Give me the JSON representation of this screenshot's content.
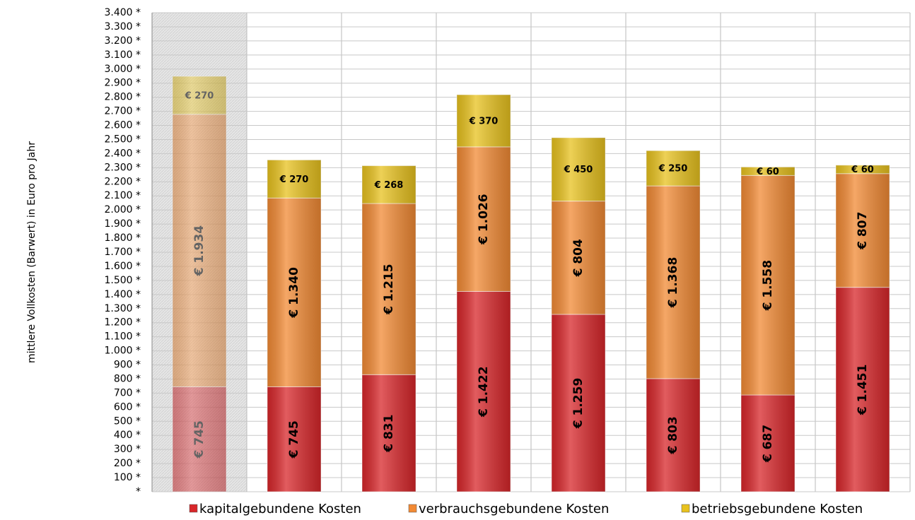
{
  "chart_data": {
    "type": "stacked_bar",
    "y_label": "mittlere Vollkosten (Barwert) in Euro pro Jahr",
    "categories": [
      null,
      null,
      null,
      null,
      null,
      null,
      null,
      null
    ],
    "series": [
      {
        "name": "kapitalgebundene Kosten",
        "color": "#d8262a",
        "values": [
          745,
          745,
          831,
          1422,
          1259,
          803,
          687,
          1451
        ],
        "value_labels": [
          "€ 745",
          "€ 745",
          "€ 831",
          "€ 1.422",
          "€ 1.259",
          "€ 803",
          "€ 687",
          "€ 1.451"
        ]
      },
      {
        "name": "verbrauchsgebundene Kosten",
        "color": "#f28a34",
        "values": [
          1934,
          1340,
          1215,
          1026,
          804,
          1368,
          1558,
          807
        ],
        "value_labels": [
          "€ 1.934",
          "€ 1.340",
          "€ 1.215",
          "€ 1.026",
          "€ 804",
          "€ 1.368",
          "€ 1.558",
          "€ 807"
        ]
      },
      {
        "name": "betriebsgebundene Kosten",
        "color": "#e8c21e",
        "values": [
          270,
          270,
          268,
          370,
          450,
          250,
          60,
          60
        ],
        "value_labels": [
          "€ 270",
          "€ 270",
          "€ 268",
          "€ 370",
          "€ 450",
          "€ 250",
          "€ 60",
          "€ 60"
        ]
      }
    ],
    "ylim": [
      0,
      3400
    ],
    "yticks": [
      {
        "value": 0,
        "label": "*"
      },
      {
        "value": 100,
        "label": "100 *"
      },
      {
        "value": 200,
        "label": "200 *"
      },
      {
        "value": 300,
        "label": "300 *"
      },
      {
        "value": 400,
        "label": "400 *"
      },
      {
        "value": 500,
        "label": "500 *"
      },
      {
        "value": 600,
        "label": "600 *"
      },
      {
        "value": 700,
        "label": "700 *"
      },
      {
        "value": 800,
        "label": "800 *"
      },
      {
        "value": 900,
        "label": "900 *"
      },
      {
        "value": 1000,
        "label": "1.000 *"
      },
      {
        "value": 1100,
        "label": "1.100 *"
      },
      {
        "value": 1200,
        "label": "1.200 *"
      },
      {
        "value": 1300,
        "label": "1.300 *"
      },
      {
        "value": 1400,
        "label": "1.400 *"
      },
      {
        "value": 1500,
        "label": "1.500 *"
      },
      {
        "value": 1600,
        "label": "1.600 *"
      },
      {
        "value": 1700,
        "label": "1.700 *"
      },
      {
        "value": 1800,
        "label": "1.800 *"
      },
      {
        "value": 1900,
        "label": "1.900 *"
      },
      {
        "value": 2000,
        "label": "2.000 *"
      },
      {
        "value": 2100,
        "label": "2.100 *"
      },
      {
        "value": 2200,
        "label": "2.200 *"
      },
      {
        "value": 2300,
        "label": "2.300 *"
      },
      {
        "value": 2400,
        "label": "2.400 *"
      },
      {
        "value": 2500,
        "label": "2.500 *"
      },
      {
        "value": 2600,
        "label": "2.600 *"
      },
      {
        "value": 2700,
        "label": "2.700 *"
      },
      {
        "value": 2800,
        "label": "2.800 *"
      },
      {
        "value": 2900,
        "label": "2.900 *"
      },
      {
        "value": 3000,
        "label": "3.000 *"
      },
      {
        "value": 3100,
        "label": "3.100 *"
      },
      {
        "value": 3200,
        "label": "3.200 *"
      },
      {
        "value": 3300,
        "label": "3.300 *"
      },
      {
        "value": 3400,
        "label": "3.400 *"
      }
    ],
    "grid": true,
    "legend": "bottom"
  }
}
